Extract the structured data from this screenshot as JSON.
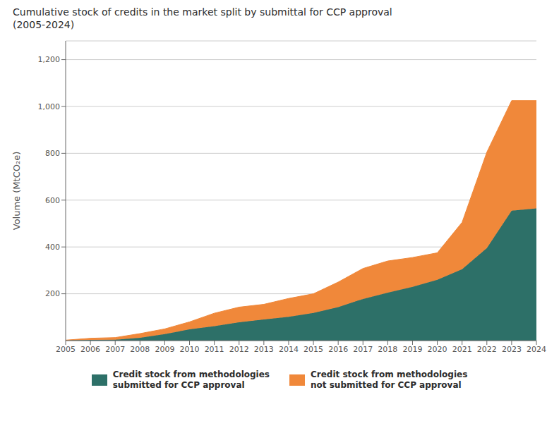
{
  "chart_data": {
    "type": "area",
    "stacked": true,
    "title": "Cumulative stock of credits in the market split by submittal for CCP approval\n(2005-2024)",
    "y_label": "Volume (MtCO₂e)",
    "x": [
      2005,
      2006,
      2007,
      2008,
      2009,
      2010,
      2011,
      2012,
      2013,
      2014,
      2015,
      2016,
      2017,
      2018,
      2019,
      2020,
      2021,
      2022,
      2023,
      2024
    ],
    "series": [
      {
        "name": "Credit stock from methodologies\nsubmitted for CCP approval",
        "color": "#2d7068",
        "values": [
          1,
          3,
          4,
          12,
          28,
          48,
          62,
          78,
          90,
          102,
          118,
          143,
          178,
          205,
          230,
          260,
          305,
          395,
          555,
          565
        ]
      },
      {
        "name": "Credit stock from methodologies\nnot submitted for CCP approval",
        "color": "#f0883a",
        "values": [
          1,
          7,
          9,
          18,
          22,
          32,
          55,
          65,
          65,
          78,
          82,
          107,
          130,
          135,
          125,
          115,
          200,
          410,
          470,
          460
        ]
      }
    ],
    "xlim": [
      2005,
      2024
    ],
    "xticks": [
      2005,
      2006,
      2007,
      2008,
      2009,
      2010,
      2011,
      2012,
      2013,
      2014,
      2015,
      2016,
      2017,
      2018,
      2019,
      2020,
      2021,
      2022,
      2023,
      2024
    ],
    "ylim": [
      0,
      1280
    ],
    "yticks": [
      200,
      400,
      600,
      800,
      {
        "value": 1000,
        "label": "1,000"
      },
      {
        "value": 1200,
        "label": "1,200"
      }
    ],
    "grid": true,
    "legend": "bottom"
  }
}
